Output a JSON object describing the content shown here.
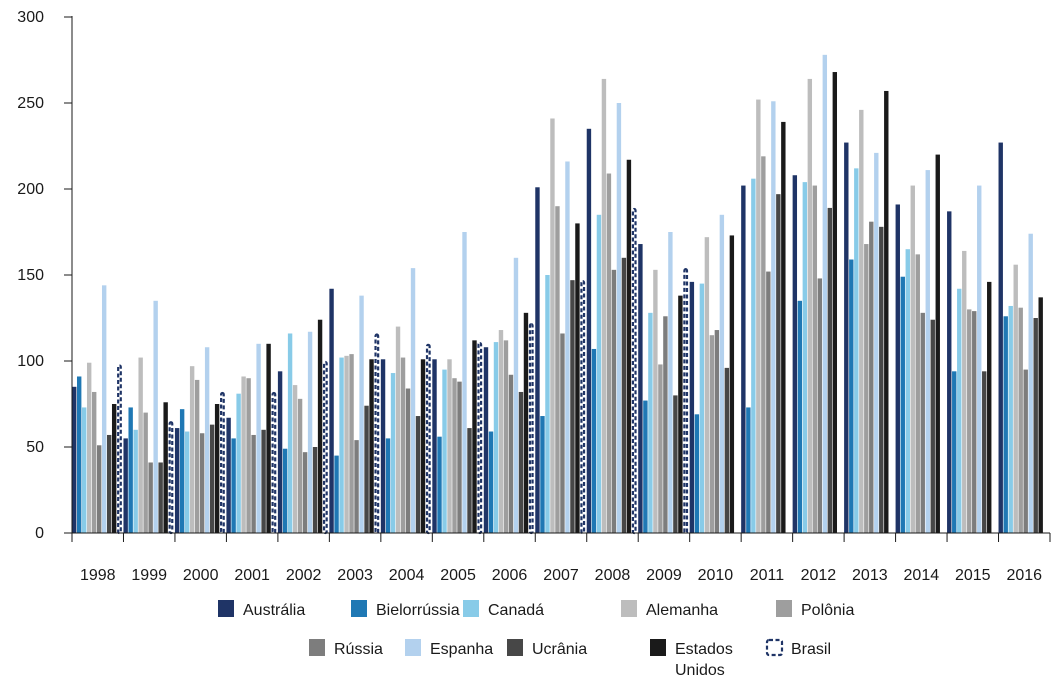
{
  "chart_data": {
    "type": "bar",
    "categories": [
      "1998",
      "1999",
      "2000",
      "2001",
      "2002",
      "2003",
      "2004",
      "2005",
      "2006",
      "2007",
      "2008",
      "2009",
      "2010",
      "2011",
      "2012",
      "2013",
      "2014",
      "2015",
      "2016"
    ],
    "ylim": [
      0,
      300
    ],
    "yticks": [
      0,
      50,
      100,
      150,
      200,
      250,
      300
    ],
    "grid": false,
    "legend_position": "bottom",
    "series": [
      {
        "name": "Austrália",
        "color": "#1f3466",
        "style": "solid",
        "values": [
          85,
          55,
          61,
          67,
          94,
          142,
          101,
          101,
          108,
          201,
          235,
          168,
          146,
          202,
          208,
          227,
          191,
          187,
          227
        ]
      },
      {
        "name": "Bielorrússia",
        "color": "#1f78b4",
        "style": "solid",
        "values": [
          91,
          73,
          72,
          55,
          49,
          45,
          55,
          56,
          59,
          68,
          107,
          77,
          69,
          73,
          135,
          159,
          149,
          94,
          126
        ]
      },
      {
        "name": "Canadá",
        "color": "#88cbe8",
        "style": "solid",
        "values": [
          73,
          60,
          59,
          81,
          116,
          102,
          93,
          95,
          111,
          150,
          185,
          128,
          145,
          206,
          204,
          212,
          165,
          142,
          132
        ]
      },
      {
        "name": "Alemanha",
        "color": "#bdbdbd",
        "style": "solid",
        "values": [
          99,
          102,
          97,
          91,
          86,
          103,
          120,
          101,
          118,
          241,
          264,
          153,
          172,
          252,
          264,
          246,
          202,
          164,
          156
        ]
      },
      {
        "name": "Polônia",
        "color": "#9e9e9e",
        "style": "solid",
        "values": [
          82,
          70,
          89,
          90,
          78,
          104,
          102,
          90,
          112,
          190,
          209,
          98,
          115,
          219,
          202,
          168,
          162,
          130,
          131
        ]
      },
      {
        "name": "Rússia",
        "color": "#7d7d7d",
        "style": "solid",
        "values": [
          51,
          41,
          58,
          57,
          47,
          54,
          84,
          88,
          92,
          116,
          153,
          126,
          118,
          152,
          148,
          181,
          128,
          129,
          95
        ]
      },
      {
        "name": "Espanha",
        "color": "#b3d1ee",
        "style": "solid",
        "values": [
          144,
          135,
          108,
          110,
          117,
          138,
          154,
          175,
          160,
          216,
          250,
          175,
          185,
          251,
          278,
          221,
          211,
          202,
          174
        ]
      },
      {
        "name": "Ucrânia",
        "color": "#474747",
        "style": "solid",
        "values": [
          57,
          41,
          63,
          60,
          50,
          74,
          68,
          61,
          82,
          147,
          160,
          80,
          96,
          197,
          189,
          178,
          124,
          94,
          125
        ]
      },
      {
        "name": "Estados Unidos",
        "color": "#1a1a1a",
        "style": "solid",
        "values": [
          75,
          76,
          75,
          110,
          124,
          101,
          101,
          112,
          128,
          180,
          217,
          138,
          173,
          239,
          268,
          257,
          220,
          146,
          137
        ]
      },
      {
        "name": "Brasil",
        "color": "#1f3466",
        "style": "dashed",
        "values": [
          98,
          65,
          82,
          82,
          100,
          116,
          110,
          111,
          122,
          147,
          189,
          154,
          null,
          null,
          null,
          null,
          null,
          null,
          null
        ]
      }
    ],
    "legend_rows": [
      [
        "Austrália",
        "Bielorrússia",
        "Canadá",
        "Alemanha",
        "Polônia"
      ],
      [
        "Rússia",
        "Espanha",
        "Ucrânia",
        "Estados Unidos",
        "Brasil"
      ]
    ]
  }
}
